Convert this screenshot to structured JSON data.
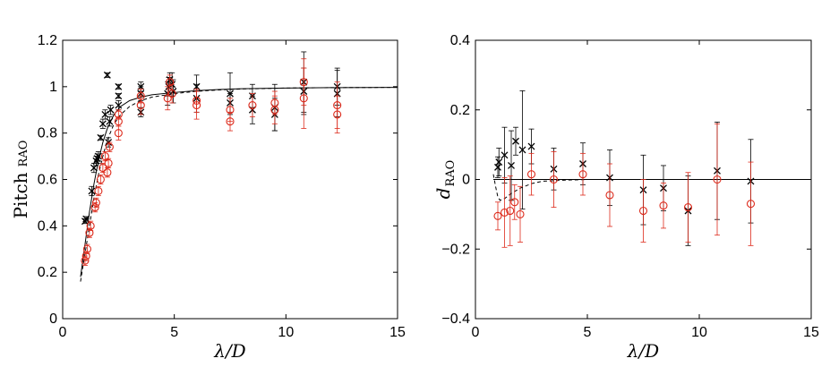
{
  "chart_data": [
    {
      "type": "scatter",
      "title": "",
      "xlabel": "λ/D",
      "ylabel_main": "Pitch",
      "ylabel_sub": "RAO",
      "xlim": [
        0,
        15
      ],
      "ylim": [
        0,
        1.2
      ],
      "xticks": [
        0,
        5,
        10,
        15
      ],
      "yticks": [
        0,
        0.2,
        0.4,
        0.6,
        0.8,
        1.0,
        1.2
      ],
      "xtick_labels": [
        "0",
        "5",
        "10",
        "15"
      ],
      "ytick_labels": [
        "0",
        "0.2",
        "0.4",
        "0.6",
        "0.8",
        "1",
        "1.2"
      ],
      "grid": false,
      "series": [
        {
          "marker": "x",
          "color": "#000000",
          "points": [
            {
              "x": 1.0,
              "y": 0.42,
              "err": 0.01
            },
            {
              "x": 1.05,
              "y": 0.43,
              "err": 0.01
            },
            {
              "x": 1.3,
              "y": 0.55,
              "err": 0.02
            },
            {
              "x": 1.4,
              "y": 0.65,
              "err": 0.02
            },
            {
              "x": 1.5,
              "y": 0.68,
              "err": 0.02
            },
            {
              "x": 1.55,
              "y": 0.69,
              "err": 0.02
            },
            {
              "x": 1.6,
              "y": 0.7,
              "err": 0.02
            },
            {
              "x": 1.7,
              "y": 0.78,
              "err": 0.01
            },
            {
              "x": 1.8,
              "y": 0.84,
              "err": 0.02
            },
            {
              "x": 1.9,
              "y": 0.88,
              "err": 0.02
            },
            {
              "x": 2.0,
              "y": 1.05,
              "err": 0.01
            },
            {
              "x": 2.05,
              "y": 0.76,
              "err": 0.02
            },
            {
              "x": 2.1,
              "y": 0.85,
              "err": 0.02
            },
            {
              "x": 2.15,
              "y": 0.9,
              "err": 0.02
            },
            {
              "x": 2.5,
              "y": 0.92,
              "err": 0.02
            },
            {
              "x": 2.5,
              "y": 0.96,
              "err": 0.01
            },
            {
              "x": 2.5,
              "y": 1.0,
              "err": 0.01
            },
            {
              "x": 3.5,
              "y": 0.89,
              "err": 0.02
            },
            {
              "x": 3.5,
              "y": 0.97,
              "err": 0.03
            },
            {
              "x": 3.5,
              "y": 1.0,
              "err": 0.02
            },
            {
              "x": 4.7,
              "y": 0.97,
              "err": 0.05
            },
            {
              "x": 4.75,
              "y": 1.0,
              "err": 0.04
            },
            {
              "x": 4.8,
              "y": 1.03,
              "err": 0.03
            },
            {
              "x": 4.9,
              "y": 1.01,
              "err": 0.05
            },
            {
              "x": 4.95,
              "y": 0.98,
              "err": 0.05
            },
            {
              "x": 6.0,
              "y": 1.0,
              "err": 0.05
            },
            {
              "x": 6.0,
              "y": 0.95,
              "err": 0.06
            },
            {
              "x": 7.5,
              "y": 0.97,
              "err": 0.09
            },
            {
              "x": 7.5,
              "y": 0.93,
              "err": 0.04
            },
            {
              "x": 8.5,
              "y": 0.96,
              "err": 0.05
            },
            {
              "x": 8.5,
              "y": 0.9,
              "err": 0.06
            },
            {
              "x": 9.5,
              "y": 0.91,
              "err": 0.1
            },
            {
              "x": 9.5,
              "y": 0.88,
              "err": 0.07
            },
            {
              "x": 10.8,
              "y": 1.02,
              "err": 0.13
            },
            {
              "x": 10.8,
              "y": 0.98,
              "err": 0.1
            },
            {
              "x": 12.3,
              "y": 1.0,
              "err": 0.08
            },
            {
              "x": 12.3,
              "y": 0.97,
              "err": 0.1
            }
          ]
        },
        {
          "marker": "o",
          "color": "#dd2a1b",
          "points": [
            {
              "x": 1.0,
              "y": 0.25,
              "err": 0.02
            },
            {
              "x": 1.05,
              "y": 0.27,
              "err": 0.02
            },
            {
              "x": 1.1,
              "y": 0.3,
              "err": 0.02
            },
            {
              "x": 1.2,
              "y": 0.37,
              "err": 0.02
            },
            {
              "x": 1.25,
              "y": 0.4,
              "err": 0.02
            },
            {
              "x": 1.45,
              "y": 0.48,
              "err": 0.02
            },
            {
              "x": 1.5,
              "y": 0.5,
              "err": 0.02
            },
            {
              "x": 1.6,
              "y": 0.55,
              "err": 0.02
            },
            {
              "x": 1.7,
              "y": 0.6,
              "err": 0.02
            },
            {
              "x": 1.8,
              "y": 0.65,
              "err": 0.02
            },
            {
              "x": 1.9,
              "y": 0.7,
              "err": 0.02
            },
            {
              "x": 2.0,
              "y": 0.63,
              "err": 0.02
            },
            {
              "x": 2.05,
              "y": 0.67,
              "err": 0.02
            },
            {
              "x": 2.1,
              "y": 0.74,
              "err": 0.02
            },
            {
              "x": 2.5,
              "y": 0.8,
              "err": 0.03
            },
            {
              "x": 2.5,
              "y": 0.85,
              "err": 0.02
            },
            {
              "x": 2.5,
              "y": 0.88,
              "err": 0.02
            },
            {
              "x": 3.5,
              "y": 0.92,
              "err": 0.04
            },
            {
              "x": 3.5,
              "y": 0.96,
              "err": 0.03
            },
            {
              "x": 4.7,
              "y": 0.95,
              "err": 0.05
            },
            {
              "x": 4.8,
              "y": 1.02,
              "err": 0.03
            },
            {
              "x": 4.9,
              "y": 0.97,
              "err": 0.04
            },
            {
              "x": 6.0,
              "y": 0.92,
              "err": 0.06
            },
            {
              "x": 6.0,
              "y": 0.94,
              "err": 0.05
            },
            {
              "x": 7.5,
              "y": 0.85,
              "err": 0.04
            },
            {
              "x": 7.5,
              "y": 0.9,
              "err": 0.05
            },
            {
              "x": 8.5,
              "y": 0.92,
              "err": 0.05
            },
            {
              "x": 9.5,
              "y": 0.9,
              "err": 0.06
            },
            {
              "x": 9.5,
              "y": 0.93,
              "err": 0.05
            },
            {
              "x": 10.8,
              "y": 0.95,
              "err": 0.13
            },
            {
              "x": 10.8,
              "y": 1.02,
              "err": 0.1
            },
            {
              "x": 12.3,
              "y": 0.92,
              "err": 0.1
            },
            {
              "x": 12.3,
              "y": 0.88,
              "err": 0.08
            }
          ]
        }
      ],
      "lines": [
        {
          "style": "solid",
          "color": "#000000",
          "x": [
            0.8,
            1.0,
            1.2,
            1.4,
            1.6,
            1.8,
            2.0,
            2.3,
            2.6,
            3.0,
            3.5,
            4.0,
            5.0,
            6.0,
            7.0,
            8.0,
            10.0,
            12.0,
            15.0
          ],
          "y": [
            0.18,
            0.32,
            0.46,
            0.58,
            0.68,
            0.76,
            0.82,
            0.88,
            0.915,
            0.94,
            0.955,
            0.965,
            0.975,
            0.983,
            0.988,
            0.991,
            0.994,
            0.996,
            0.997
          ]
        },
        {
          "style": "dashed",
          "color": "#000000",
          "x": [
            0.8,
            1.0,
            1.2,
            1.4,
            1.6,
            1.8,
            2.0,
            2.3,
            2.6,
            3.0,
            3.5,
            4.0,
            5.0,
            6.0,
            7.0,
            8.0,
            10.0,
            12.0,
            15.0
          ],
          "y": [
            0.16,
            0.28,
            0.4,
            0.52,
            0.62,
            0.7,
            0.77,
            0.84,
            0.88,
            0.915,
            0.94,
            0.955,
            0.97,
            0.98,
            0.986,
            0.99,
            0.994,
            0.996,
            0.997
          ]
        }
      ]
    },
    {
      "type": "scatter",
      "title": "",
      "xlabel": "λ/D",
      "ylabel_main": "d",
      "ylabel_sub": "RAO",
      "xlim": [
        0,
        15
      ],
      "ylim": [
        -0.4,
        0.4
      ],
      "xticks": [
        0,
        5,
        10,
        15
      ],
      "yticks": [
        -0.4,
        -0.2,
        0,
        0.2,
        0.4
      ],
      "xtick_labels": [
        "0",
        "5",
        "10",
        "15"
      ],
      "ytick_labels": [
        "−0.4",
        "−0.2",
        "0",
        "0.2",
        "0.4"
      ],
      "grid": false,
      "series": [
        {
          "marker": "x",
          "color": "#000000",
          "points": [
            {
              "x": 1.0,
              "y": 0.035,
              "err": 0.03
            },
            {
              "x": 1.05,
              "y": 0.05,
              "err": 0.04
            },
            {
              "x": 1.3,
              "y": 0.07,
              "err": 0.08
            },
            {
              "x": 1.6,
              "y": 0.04,
              "err": 0.1
            },
            {
              "x": 1.8,
              "y": 0.11,
              "err": 0.04
            },
            {
              "x": 2.1,
              "y": 0.085,
              "err": 0.17
            },
            {
              "x": 2.5,
              "y": 0.095,
              "err": 0.05
            },
            {
              "x": 3.5,
              "y": 0.03,
              "err": 0.06
            },
            {
              "x": 4.8,
              "y": 0.045,
              "err": 0.06
            },
            {
              "x": 6.0,
              "y": 0.005,
              "err": 0.08
            },
            {
              "x": 7.5,
              "y": -0.03,
              "err": 0.1
            },
            {
              "x": 8.4,
              "y": -0.025,
              "err": 0.065
            },
            {
              "x": 9.5,
              "y": -0.09,
              "err": 0.1
            },
            {
              "x": 10.8,
              "y": 0.025,
              "err": 0.14
            },
            {
              "x": 12.3,
              "y": -0.005,
              "err": 0.12
            }
          ]
        },
        {
          "marker": "o",
          "color": "#dd2a1b",
          "points": [
            {
              "x": 1.0,
              "y": -0.105,
              "err": 0.04
            },
            {
              "x": 1.3,
              "y": -0.095,
              "err": 0.1
            },
            {
              "x": 1.55,
              "y": -0.09,
              "err": 0.1
            },
            {
              "x": 1.75,
              "y": -0.065,
              "err": 0.05
            },
            {
              "x": 2.0,
              "y": -0.1,
              "err": 0.08
            },
            {
              "x": 2.5,
              "y": 0.015,
              "err": 0.06
            },
            {
              "x": 3.5,
              "y": 0.0,
              "err": 0.08
            },
            {
              "x": 4.8,
              "y": 0.015,
              "err": 0.06
            },
            {
              "x": 6.0,
              "y": -0.045,
              "err": 0.09
            },
            {
              "x": 7.5,
              "y": -0.09,
              "err": 0.09
            },
            {
              "x": 8.4,
              "y": -0.075,
              "err": 0.065
            },
            {
              "x": 9.5,
              "y": -0.08,
              "err": 0.1
            },
            {
              "x": 10.8,
              "y": 0.0,
              "err": 0.16
            },
            {
              "x": 12.3,
              "y": -0.07,
              "err": 0.12
            }
          ]
        }
      ],
      "lines": [
        {
          "style": "solid",
          "color": "#000000",
          "x": [
            0.8,
            15.0
          ],
          "y": [
            0.0,
            0.0
          ]
        },
        {
          "style": "dashed",
          "color": "#000000",
          "x": [
            0.8,
            0.9,
            1.0,
            1.1,
            1.3,
            1.6,
            2.0,
            2.5,
            3.0,
            4.0,
            5.0,
            15.0
          ],
          "y": [
            0.015,
            -0.02,
            -0.05,
            -0.06,
            -0.055,
            -0.04,
            -0.025,
            -0.012,
            -0.005,
            -0.002,
            0.0,
            0.0
          ]
        }
      ]
    }
  ]
}
